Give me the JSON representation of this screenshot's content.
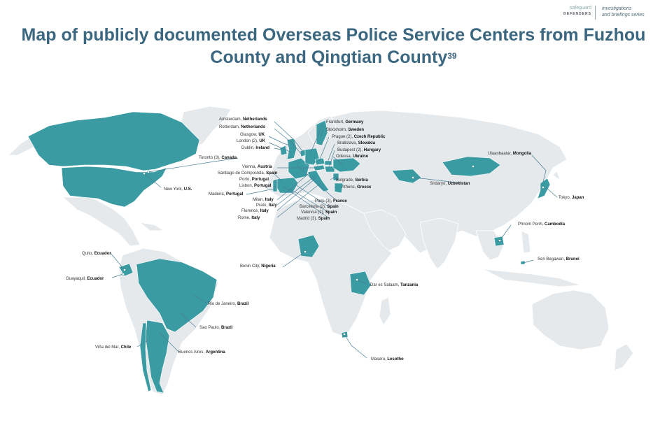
{
  "branding": {
    "org_name": "safeguard",
    "org_sub": "DEFENDERS",
    "series_line1": "investigations",
    "series_line2": "and briefings series"
  },
  "title": {
    "line1": "Map of publicly documented Overseas Police Service Centers from Fuzhou",
    "line2": "County and Qingtian County",
    "footnote": "39"
  },
  "colors": {
    "highlight": "#3a9ba3",
    "land": "#e6e9ec",
    "border": "#ffffff",
    "title": "#3c6780",
    "leader": "#4a7e95"
  },
  "labels": [
    {
      "id": "amsterdam",
      "city": "Amsterdam,",
      "country": "Netherlands"
    },
    {
      "id": "rotterdam",
      "city": "Rotterdam,",
      "country": "Netherlands"
    },
    {
      "id": "glasgow",
      "city": "Glasgow,",
      "country": "UK"
    },
    {
      "id": "london",
      "city": "London (2),",
      "country": "UK"
    },
    {
      "id": "dublin",
      "city": "Dublin,",
      "country": "Ireland"
    },
    {
      "id": "toronto",
      "city": "Toronto (3),",
      "country": "Canada"
    },
    {
      "id": "vienna",
      "city": "Vienna,",
      "country": "Austria"
    },
    {
      "id": "santiago",
      "city": "Santiago de Compostela,",
      "country": "Spain"
    },
    {
      "id": "porto",
      "city": "Porto,",
      "country": "Portugal"
    },
    {
      "id": "lisbon",
      "city": "Lisbon,",
      "country": "Portugal"
    },
    {
      "id": "newyork",
      "city": "New York,",
      "country": "U.S."
    },
    {
      "id": "madeira",
      "city": "Madeira,",
      "country": "Portugal"
    },
    {
      "id": "frankfurt",
      "city": "Frankfurt,",
      "country": "Germany"
    },
    {
      "id": "stockholm",
      "city": "Stockholm,",
      "country": "Sweden"
    },
    {
      "id": "prague",
      "city": "Prague (2),",
      "country": "Czech Republic"
    },
    {
      "id": "bratislava",
      "city": "Bratislava,",
      "country": "Slovakia"
    },
    {
      "id": "budapest",
      "city": "Budapest (2),",
      "country": "Hungary"
    },
    {
      "id": "odessa",
      "city": "Odessa,",
      "country": "Ukraine"
    },
    {
      "id": "belgrade",
      "city": "Belgrade,",
      "country": "Serbia"
    },
    {
      "id": "athens",
      "city": "Athens,",
      "country": "Greece"
    },
    {
      "id": "milan",
      "city": "Milan,",
      "country": "Italy"
    },
    {
      "id": "prato",
      "city": "Prato,",
      "country": "Italy"
    },
    {
      "id": "florence",
      "city": "Florence,",
      "country": "Italy"
    },
    {
      "id": "rome",
      "city": "Rome,",
      "country": "Italy"
    },
    {
      "id": "paris",
      "city": "Paris (3),",
      "country": "France"
    },
    {
      "id": "barcelona",
      "city": "Barcelona (2),",
      "country": "Spain"
    },
    {
      "id": "valencia",
      "city": "Valencia (2),",
      "country": "Spain"
    },
    {
      "id": "madrid",
      "city": "Madrid (3),",
      "country": "Spain"
    },
    {
      "id": "ulaanbaatar",
      "city": "Ulaanbaatar,",
      "country": "Mongolia"
    },
    {
      "id": "sirdaryo",
      "city": "Sirdaryo,",
      "country": "Uzbekistan"
    },
    {
      "id": "tokyo",
      "city": "Tokyo,",
      "country": "Japan"
    },
    {
      "id": "phnompenh",
      "city": "Phnom Penh,",
      "country": "Cambodia"
    },
    {
      "id": "seri",
      "city": "Seri Begawan,",
      "country": "Brunei"
    },
    {
      "id": "quito",
      "city": "Quito,",
      "country": "Ecuador"
    },
    {
      "id": "guayaquil",
      "city": "Guayaquil,",
      "country": "Ecuador"
    },
    {
      "id": "benin",
      "city": "Benin City,",
      "country": "Nigeria"
    },
    {
      "id": "daressalaam",
      "city": "Dar es Salaam,",
      "country": "Tanzania"
    },
    {
      "id": "rio",
      "city": "Rio de Janeiro,",
      "country": "Brazil"
    },
    {
      "id": "saopaulo",
      "city": "Sao Paulo,",
      "country": "Brazil"
    },
    {
      "id": "vina",
      "city": "Viña del Mar,",
      "country": "Chile"
    },
    {
      "id": "buenosaires",
      "city": "Buenos Aires,",
      "country": "Argentina"
    },
    {
      "id": "maseru",
      "city": "Maseru,",
      "country": "Lesotho"
    }
  ]
}
